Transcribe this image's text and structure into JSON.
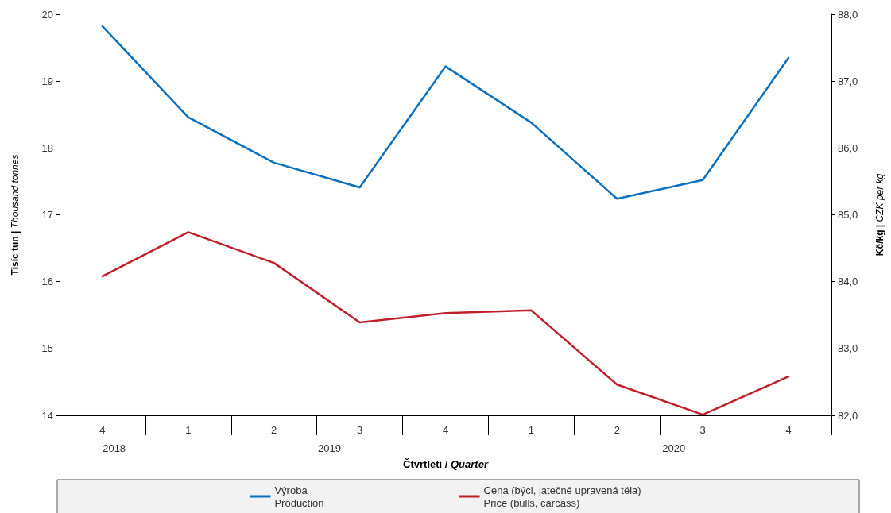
{
  "chart_data": {
    "type": "line",
    "xlabel": "Čtvrtletí / Quarter",
    "ylabel": "Tisíc tun | Thousand tonnes",
    "y2label": "Kč/kg | CZK per kg",
    "categories": [
      "4",
      "1",
      "2",
      "3",
      "4",
      "1",
      "2",
      "3",
      "4"
    ],
    "annotations": [
      "2018",
      "2019",
      "2020"
    ],
    "series": [
      {
        "name": "Výroba\nProduction",
        "color": "#0a70c0",
        "values": [
          19.82,
          18.46,
          17.78,
          17.41,
          19.22,
          18.38,
          17.24,
          17.52,
          19.35
        ]
      },
      {
        "name": "Cena (býci, jatečně upravená těla)\nPrice (bulls, carcass)",
        "color": "#c0202a",
        "axis": "y2",
        "values": [
          84.08,
          84.74,
          84.28,
          83.39,
          83.53,
          83.57,
          82.46,
          82.01,
          82.58
        ]
      }
    ],
    "ylim": [
      14,
      20
    ],
    "yticks": [
      14,
      15,
      16,
      17,
      18,
      19,
      20
    ],
    "y2lim": [
      82,
      88
    ],
    "y2ticks": [
      {
        "value": 82,
        "label": "82,0"
      },
      {
        "value": 83,
        "label": "83,0"
      },
      {
        "value": 84,
        "label": "84,0"
      },
      {
        "value": 85,
        "label": "85,0"
      },
      {
        "value": 86,
        "label": "86,0"
      },
      {
        "value": 87,
        "label": "87,0"
      },
      {
        "value": 88,
        "label": "88,0"
      }
    ],
    "grid": false,
    "legend": "bottom",
    "marker": "none",
    "line_style": "solid"
  }
}
